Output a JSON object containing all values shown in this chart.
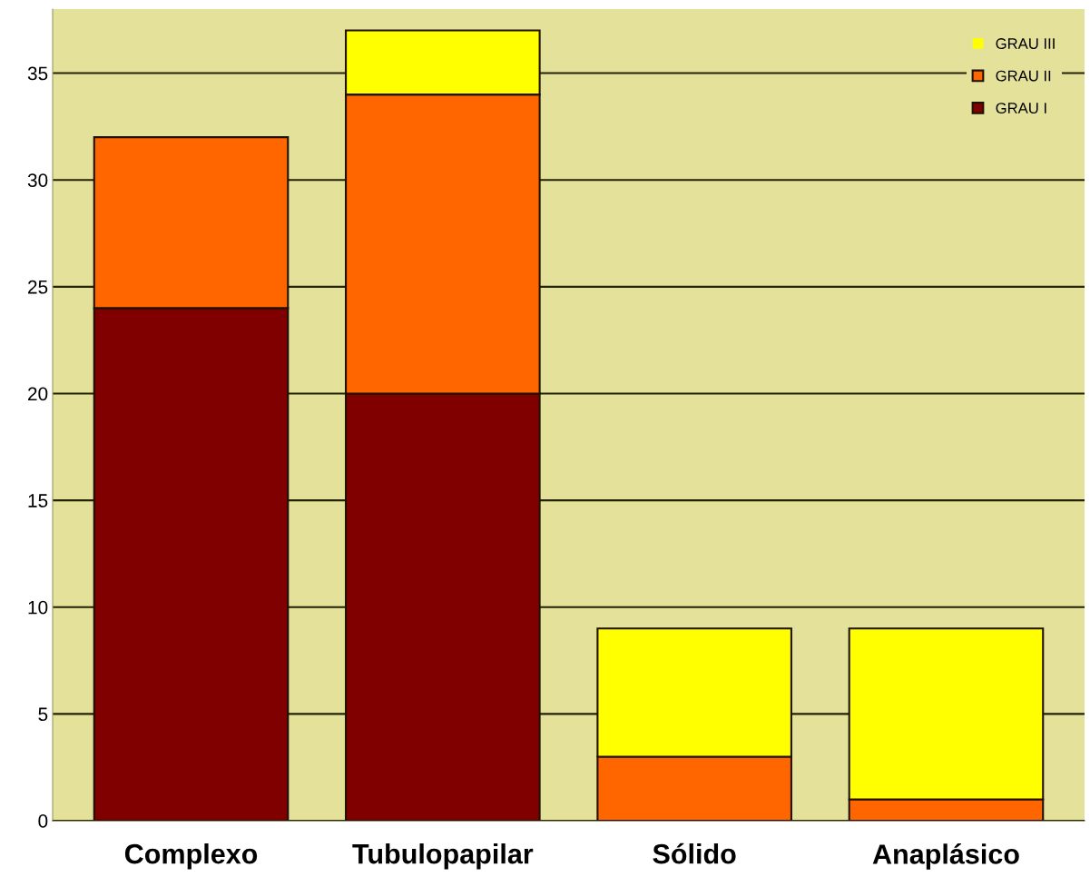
{
  "chart_data": {
    "type": "bar",
    "stacked": true,
    "categories": [
      "Complexo",
      "Tubulopapilar",
      "Sólido",
      "Anaplásico"
    ],
    "series": [
      {
        "name": "GRAU I",
        "color": "#800000",
        "values": [
          24,
          20,
          0,
          0
        ]
      },
      {
        "name": "GRAU II",
        "color": "#ff6600",
        "values": [
          8,
          14,
          3,
          1
        ]
      },
      {
        "name": "GRAU III",
        "color": "#ffff00",
        "values": [
          0,
          3,
          6,
          8
        ]
      }
    ],
    "ylim": [
      0,
      38
    ],
    "yticks": [
      0,
      5,
      10,
      15,
      20,
      25,
      30,
      35
    ],
    "grid": "y",
    "legend": "top right"
  }
}
